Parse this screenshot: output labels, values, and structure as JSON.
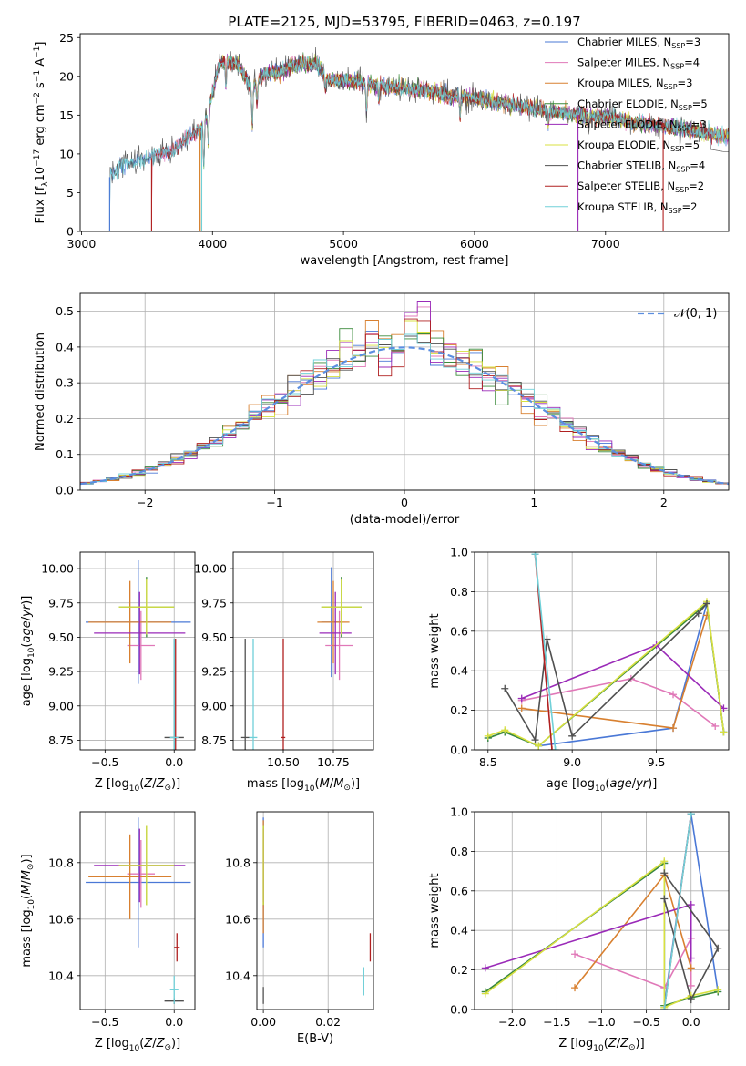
{
  "chart_data": [
    {
      "id": "spectrum",
      "type": "line",
      "title": "PLATE=2125, MJD=53795, FIBERID=0463, z=0.197",
      "xlabel": "wavelength [Angstrom, rest frame]",
      "ylabel": "Flux [f",
      "xlim": [
        2990,
        7940
      ],
      "ylim": [
        0,
        25.5
      ],
      "xticks": [
        3000,
        4000,
        5000,
        6000,
        7000
      ],
      "yticks": [
        0,
        5,
        10,
        15,
        20,
        25
      ],
      "grid": false,
      "legend_position": "top-right",
      "series": [
        {
          "name": "Chabrier MILES, N",
          "sub": "SSP",
          "suffix": "=3",
          "color": "#4a78d6",
          "start": 3215
        },
        {
          "name": "Salpeter MILES, N",
          "sub": "SSP",
          "suffix": "=4",
          "color": "#e078b8",
          "start": 3535
        },
        {
          "name": "Kroupa MILES, N",
          "sub": "SSP",
          "suffix": "=3",
          "color": "#d88030",
          "start": 3915
        },
        {
          "name": "Chabrier ELODIE, N",
          "sub": "SSP",
          "suffix": "=5",
          "color": "#3a8a3a",
          "start": 3900
        },
        {
          "name": "Salpeter ELODIE, N",
          "sub": "SSP",
          "suffix": "=3",
          "color": "#9a2ab8",
          "start": 3900
        },
        {
          "name": "Kroupa ELODIE, N",
          "sub": "SSP",
          "suffix": "=5",
          "color": "#d8e040",
          "start": 3900
        },
        {
          "name": "Chabrier STELIB, N",
          "sub": "SSP",
          "suffix": "=4",
          "color": "#505050",
          "start": 3215
        },
        {
          "name": "Salpeter STELIB, N",
          "sub": "SSP",
          "suffix": "=2",
          "color": "#b02020",
          "start": 3535
        },
        {
          "name": "Kroupa STELIB, N",
          "sub": "SSP",
          "suffix": "=2",
          "color": "#70d0d8",
          "start": 3215
        }
      ],
      "continuum": {
        "x": [
          3215,
          3300,
          3400,
          3500,
          3600,
          3700,
          3800,
          3900,
          3960,
          4000,
          4050,
          4100,
          4200,
          4300,
          4400,
          4500,
          4600,
          4700,
          4800,
          4900,
          5000,
          5200,
          5400,
          5600,
          5800,
          6000,
          6200,
          6400,
          6600,
          6800,
          7000,
          7200,
          7400,
          7600,
          7800,
          7900
        ],
        "y": [
          7,
          8.5,
          9,
          9.2,
          10,
          10.5,
          12,
          13,
          15,
          18,
          21.5,
          22,
          21.5,
          18.5,
          20.5,
          20.5,
          21.5,
          21.5,
          21.5,
          19.5,
          19.5,
          19,
          18.5,
          18.3,
          17.5,
          17.2,
          16.5,
          16,
          15.5,
          15,
          14.8,
          14,
          13.7,
          13.2,
          12.6,
          12.3
        ]
      },
      "absorption_lines": [
        [
          3934,
          6
        ],
        [
          3969,
          5
        ],
        [
          4102,
          3
        ],
        [
          4304,
          5
        ],
        [
          4340,
          3
        ],
        [
          4861,
          2.5
        ],
        [
          5175,
          4
        ],
        [
          5270,
          2
        ],
        [
          5890,
          2.5
        ],
        [
          6563,
          2
        ],
        [
          6870,
          1.5
        ]
      ],
      "cutoffs": [
        [
          3215,
          0
        ],
        [
          3535,
          7
        ],
        [
          3905,
          2
        ],
        [
          3918,
          8
        ],
        [
          6790,
          4
        ],
        [
          7440,
          7
        ]
      ]
    },
    {
      "id": "residuals",
      "type": "area",
      "xlabel": "(data-model)/error",
      "ylabel": "Normed distribution",
      "xlim": [
        -2.5,
        2.5
      ],
      "ylim": [
        0,
        0.55
      ],
      "xticks": [
        -2,
        -1,
        0,
        1,
        2
      ],
      "yticks": [
        0.0,
        0.1,
        0.2,
        0.3,
        0.4,
        0.5
      ],
      "grid": true,
      "legend_position": "top-right",
      "gaussian_label": "𝒩(0, 1)",
      "gaussian_color": "#5b8ee0",
      "bin_width": 0.1,
      "hist_colors": [
        "#4a78d6",
        "#e078b8",
        "#d88030",
        "#3a8a3a",
        "#9a2ab8",
        "#d8e040",
        "#505050",
        "#b02020",
        "#70d0d8"
      ],
      "peak_heights": [
        0.44,
        0.5,
        0.45,
        0.44,
        0.52,
        0.46,
        0.42,
        0.47,
        0.43
      ]
    },
    {
      "id": "age-vs-Z",
      "type": "scatter",
      "xlabel": "Z [log",
      "ylabel": "age  [log",
      "xlim": [
        -0.68,
        0.15
      ],
      "ylim": [
        8.68,
        10.12
      ],
      "xticks": [
        -0.5,
        0.0
      ],
      "yticks": [
        8.75,
        9.0,
        9.25,
        9.5,
        9.75,
        10.0
      ],
      "grid": true,
      "points": [
        {
          "color": "#4a78d6",
          "x": -0.26,
          "y": 9.61,
          "xerr": 0.38,
          "yerr": 0.45
        },
        {
          "color": "#e078b8",
          "x": -0.24,
          "y": 9.44,
          "xerr": 0.1,
          "yerr": 0.25
        },
        {
          "color": "#d88030",
          "x": -0.32,
          "y": 9.61,
          "xerr": 0.3,
          "yerr": 0.3
        },
        {
          "color": "#3a8a3a",
          "x": -0.2,
          "y": 9.72,
          "xerr": 0.2,
          "yerr": 0.22
        },
        {
          "color": "#9a2ab8",
          "x": -0.25,
          "y": 9.53,
          "xerr": 0.33,
          "yerr": 0.3
        },
        {
          "color": "#d8e040",
          "x": -0.2,
          "y": 9.72,
          "xerr": 0.2,
          "yerr": 0.2
        },
        {
          "color": "#505050",
          "x": 0.0,
          "y": 8.77,
          "xerr": 0.07,
          "yerr": 0.72
        },
        {
          "color": "#b02020",
          "x": 0.01,
          "y": 8.77,
          "xerr": 0.01,
          "yerr": 0.72
        },
        {
          "color": "#70d0d8",
          "x": 0.0,
          "y": 8.77,
          "xerr": 0.03,
          "yerr": 0.72
        }
      ]
    },
    {
      "id": "age-vs-mass",
      "type": "scatter",
      "xlabel": "mass [log",
      "ylabel": "",
      "xlim": [
        10.25,
        10.95
      ],
      "ylim": [
        8.68,
        10.12
      ],
      "xticks": [
        10.5,
        10.75
      ],
      "yticks": [
        8.75,
        9.0,
        9.25,
        9.5,
        9.75,
        10.0
      ],
      "grid": true,
      "points": [
        {
          "color": "#4a78d6",
          "x": 10.74,
          "y": 9.61,
          "xerr": 0.05,
          "yerr": 0.4
        },
        {
          "color": "#e078b8",
          "x": 10.78,
          "y": 9.44,
          "xerr": 0.07,
          "yerr": 0.25
        },
        {
          "color": "#d88030",
          "x": 10.75,
          "y": 9.61,
          "xerr": 0.08,
          "yerr": 0.3
        },
        {
          "color": "#3a8a3a",
          "x": 10.79,
          "y": 9.72,
          "xerr": 0.1,
          "yerr": 0.22
        },
        {
          "color": "#9a2ab8",
          "x": 10.76,
          "y": 9.53,
          "xerr": 0.08,
          "yerr": 0.3
        },
        {
          "color": "#d8e040",
          "x": 10.79,
          "y": 9.72,
          "xerr": 0.1,
          "yerr": 0.2
        },
        {
          "color": "#505050",
          "x": 10.31,
          "y": 8.77,
          "xerr": 0.02,
          "yerr": 0.72
        },
        {
          "color": "#b02020",
          "x": 10.5,
          "y": 8.77,
          "xerr": 0.01,
          "yerr": 0.72
        },
        {
          "color": "#70d0d8",
          "x": 10.35,
          "y": 8.77,
          "xerr": 0.02,
          "yerr": 0.72
        }
      ]
    },
    {
      "id": "massweight-vs-age",
      "type": "line",
      "xlabel": "age  [log",
      "ylabel": "mass weight",
      "xlim": [
        8.42,
        9.93
      ],
      "ylim": [
        0,
        1
      ],
      "xticks": [
        8.5,
        9.0,
        9.5
      ],
      "yticks": [
        0.0,
        0.2,
        0.4,
        0.6,
        0.8,
        1.0
      ],
      "grid": true,
      "series": [
        {
          "color": "#4a78d6",
          "x": [
            8.5,
            8.6,
            8.8,
            9.6,
            9.8,
            9.9
          ],
          "y": [
            0.06,
            0.09,
            0.02,
            0.11,
            0.74,
            0.09
          ]
        },
        {
          "color": "#e078b8",
          "x": [
            8.7,
            9.35,
            9.6,
            9.85
          ],
          "y": [
            0.25,
            0.36,
            0.28,
            0.12
          ]
        },
        {
          "color": "#d88030",
          "x": [
            8.7,
            9.6,
            9.8
          ],
          "y": [
            0.21,
            0.11,
            0.68
          ]
        },
        {
          "color": "#3a8a3a",
          "x": [
            8.5,
            8.6,
            8.8,
            9.8,
            9.9
          ],
          "y": [
            0.06,
            0.09,
            0.02,
            0.74,
            0.09
          ]
        },
        {
          "color": "#9a2ab8",
          "x": [
            8.7,
            9.5,
            9.9
          ],
          "y": [
            0.26,
            0.53,
            0.21
          ]
        },
        {
          "color": "#d8e040",
          "x": [
            8.5,
            8.6,
            8.8,
            9.8,
            9.9
          ],
          "y": [
            0.07,
            0.1,
            0.02,
            0.75,
            0.09
          ]
        },
        {
          "color": "#505050",
          "x": [
            8.6,
            8.78,
            8.85,
            9.0,
            9.75,
            9.8
          ],
          "y": [
            0.31,
            0.05,
            0.56,
            0.07,
            0.69,
            0.74
          ]
        },
        {
          "color": "#b02020",
          "x": [
            8.78,
            8.88
          ],
          "y": [
            0.99,
            0.0
          ]
        },
        {
          "color": "#70d0d8",
          "x": [
            8.78,
            8.9
          ],
          "y": [
            0.99,
            0.0
          ]
        }
      ]
    },
    {
      "id": "mass-vs-Z",
      "type": "scatter",
      "xlabel": "Z [log",
      "ylabel": "mass [log",
      "xlim": [
        -0.68,
        0.15
      ],
      "ylim": [
        10.28,
        10.98
      ],
      "xticks": [
        -0.5,
        0.0
      ],
      "yticks": [
        10.4,
        10.6,
        10.8
      ],
      "grid": true,
      "points": [
        {
          "color": "#4a78d6",
          "x": -0.26,
          "y": 10.73,
          "xerr": 0.38,
          "yerr": 0.23
        },
        {
          "color": "#e078b8",
          "x": -0.24,
          "y": 10.76,
          "xerr": 0.1,
          "yerr": 0.12
        },
        {
          "color": "#d88030",
          "x": -0.32,
          "y": 10.75,
          "xerr": 0.3,
          "yerr": 0.15
        },
        {
          "color": "#3a8a3a",
          "x": -0.2,
          "y": 10.79,
          "xerr": 0.2,
          "yerr": 0.14
        },
        {
          "color": "#9a2ab8",
          "x": -0.25,
          "y": 10.79,
          "xerr": 0.33,
          "yerr": 0.13
        },
        {
          "color": "#d8e040",
          "x": -0.2,
          "y": 10.79,
          "xerr": 0.2,
          "yerr": 0.14
        },
        {
          "color": "#505050",
          "x": 0.0,
          "y": 10.31,
          "xerr": 0.07,
          "yerr": 0.01
        },
        {
          "color": "#b02020",
          "x": 0.02,
          "y": 10.5,
          "xerr": 0.02,
          "yerr": 0.05
        },
        {
          "color": "#70d0d8",
          "x": 0.0,
          "y": 10.35,
          "xerr": 0.03,
          "yerr": 0.05
        }
      ]
    },
    {
      "id": "mass-vs-EBV",
      "type": "scatter",
      "xlabel": "E(B-V)",
      "ylabel": "",
      "xlim": [
        -0.002,
        0.034
      ],
      "ylim": [
        10.28,
        10.98
      ],
      "xticks": [
        0.0,
        0.02
      ],
      "yticks": [
        10.4,
        10.6,
        10.8
      ],
      "grid": true,
      "points": [
        {
          "color": "#4a78d6",
          "x": 0.0,
          "y": 10.73,
          "xerr": 0,
          "yerr": 0.23
        },
        {
          "color": "#e078b8",
          "x": 0.0,
          "y": 10.76,
          "xerr": 0,
          "yerr": 0.12
        },
        {
          "color": "#d88030",
          "x": 0.0,
          "y": 10.75,
          "xerr": 0,
          "yerr": 0.2
        },
        {
          "color": "#3a8a3a",
          "x": 0.0,
          "y": 10.79,
          "xerr": 0,
          "yerr": 0.14
        },
        {
          "color": "#9a2ab8",
          "x": 0.0,
          "y": 10.79,
          "xerr": 0,
          "yerr": 0.13
        },
        {
          "color": "#d8e040",
          "x": 0.0,
          "y": 10.79,
          "xerr": 0,
          "yerr": 0.14
        },
        {
          "color": "#505050",
          "x": 0.0,
          "y": 10.33,
          "xerr": 0,
          "yerr": 0.03
        },
        {
          "color": "#b02020",
          "x": 0.033,
          "y": 10.5,
          "xerr": 0,
          "yerr": 0.05
        },
        {
          "color": "#70d0d8",
          "x": 0.031,
          "y": 10.38,
          "xerr": 0,
          "yerr": 0.05
        }
      ]
    },
    {
      "id": "massweight-vs-Z",
      "type": "line",
      "xlabel": "Z [log",
      "ylabel": "mass weight",
      "xlim": [
        -2.42,
        0.42
      ],
      "ylim": [
        0,
        1
      ],
      "xticks": [
        -2.0,
        -1.5,
        -1.0,
        -0.5,
        0.0
      ],
      "yticks": [
        0.0,
        0.2,
        0.4,
        0.6,
        0.8,
        1.0
      ],
      "grid": true,
      "series": [
        {
          "color": "#4a78d6",
          "x": [
            -2.3,
            -0.3,
            -0.3,
            0.0,
            0.3
          ],
          "y": [
            0.09,
            0.74,
            0.02,
            0.99,
            0.09
          ]
        },
        {
          "color": "#e078b8",
          "x": [
            -1.3,
            -0.3,
            0.0,
            0.0
          ],
          "y": [
            0.28,
            0.11,
            0.36,
            0.12
          ]
        },
        {
          "color": "#d88030",
          "x": [
            -1.3,
            -0.3,
            0.0
          ],
          "y": [
            0.11,
            0.68,
            0.21
          ]
        },
        {
          "color": "#3a8a3a",
          "x": [
            -2.3,
            -0.3,
            -0.3,
            0.0,
            0.3
          ],
          "y": [
            0.09,
            0.74,
            0.02,
            0.06,
            0.09
          ]
        },
        {
          "color": "#9a2ab8",
          "x": [
            -2.3,
            0.0,
            0.0
          ],
          "y": [
            0.21,
            0.53,
            0.26
          ]
        },
        {
          "color": "#d8e040",
          "x": [
            -2.3,
            -0.3,
            -0.3,
            0.0,
            0.3
          ],
          "y": [
            0.08,
            0.75,
            0.01,
            0.07,
            0.1
          ]
        },
        {
          "color": "#505050",
          "x": [
            -0.3,
            0.0,
            0.3,
            -0.3
          ],
          "y": [
            0.56,
            0.05,
            0.31,
            0.69
          ]
        },
        {
          "color": "#b02020",
          "x": [
            -0.3,
            0.0
          ],
          "y": [
            0.0,
            0.99
          ]
        },
        {
          "color": "#70d0d8",
          "x": [
            -0.3,
            0.0
          ],
          "y": [
            0.0,
            0.99
          ]
        }
      ]
    }
  ]
}
